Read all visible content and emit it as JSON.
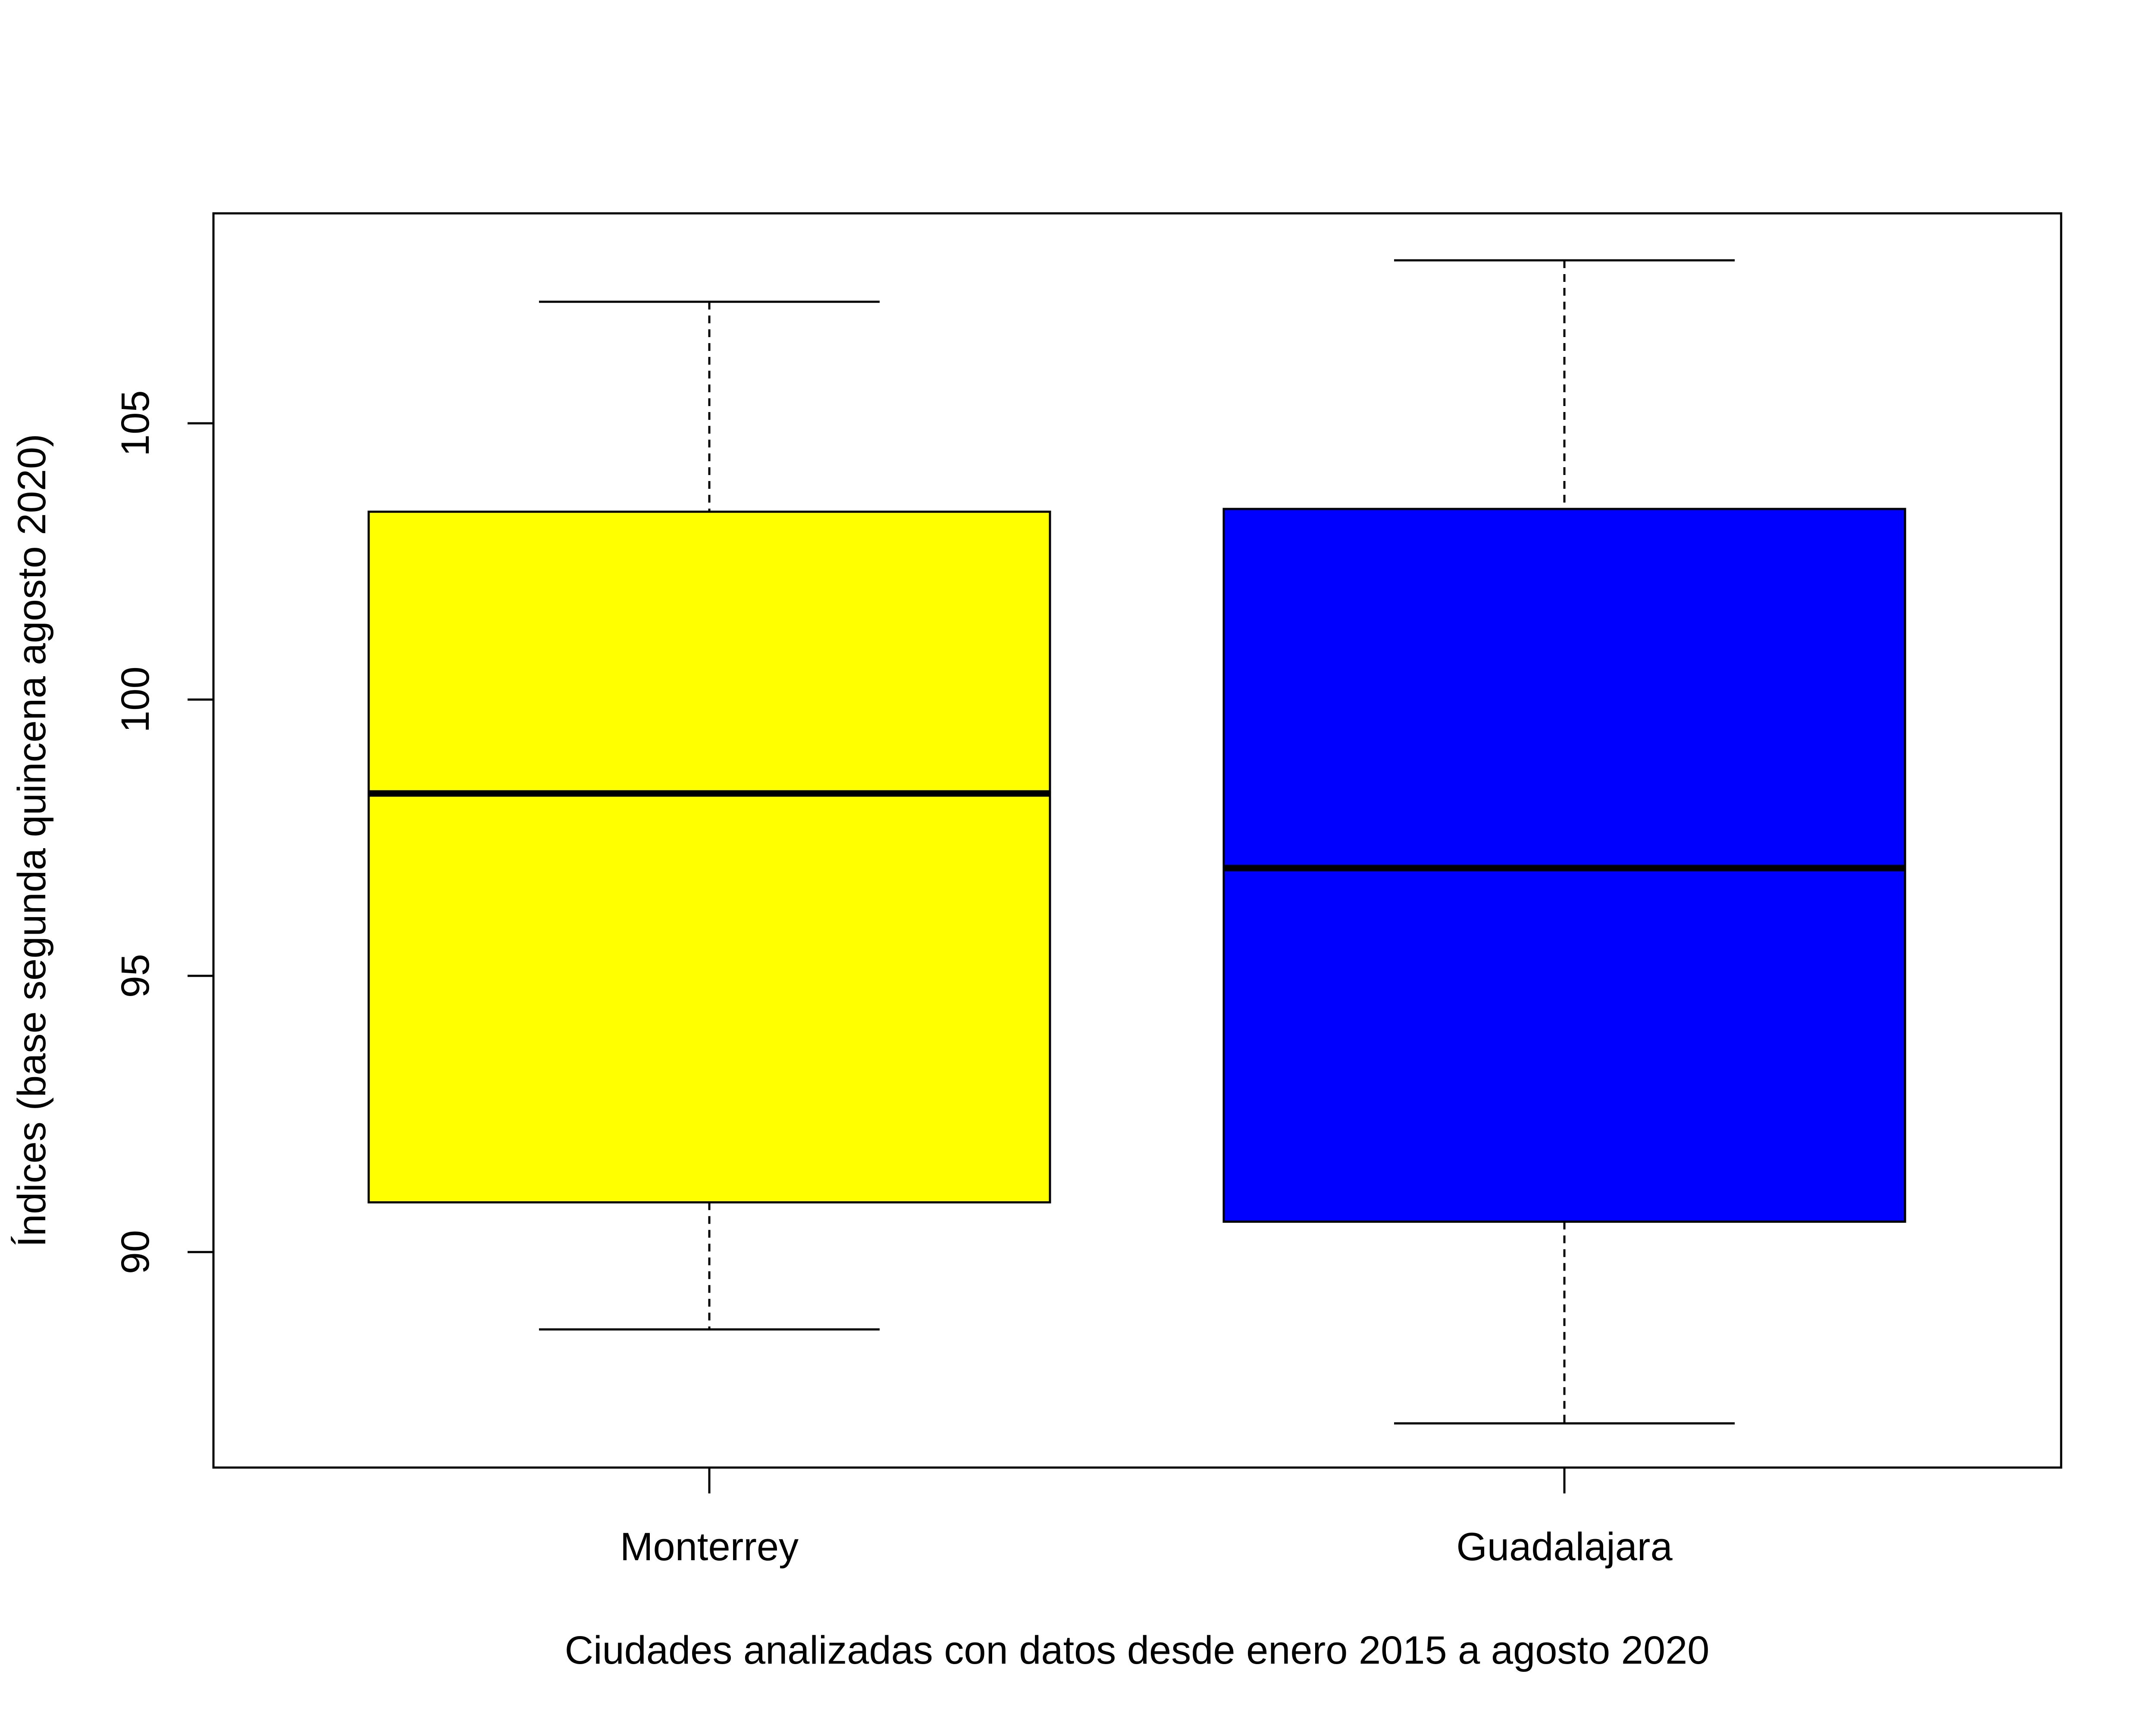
{
  "chart_data": {
    "type": "box",
    "title": "",
    "xlabel": "Ciudades analizadas con datos desde enero 2015 a agosto 2020",
    "ylabel": "Índices (base segunda quincena agosto 2020)",
    "ylim": [
      86.1,
      108.8
    ],
    "yticks": [
      90,
      95,
      100,
      105
    ],
    "grid": false,
    "categories": [
      "Monterrey",
      "Guadalajara"
    ],
    "boxes": [
      {
        "category": "Monterrey",
        "fill": "#FFFF00",
        "whisker_low": 88.6,
        "q1": 90.9,
        "median": 98.3,
        "q3": 103.4,
        "whisker_high": 107.2
      },
      {
        "category": "Guadalajara",
        "fill": "#0000FF",
        "whisker_low": 86.9,
        "q1": 90.55,
        "median": 96.95,
        "q3": 103.45,
        "whisker_high": 107.95
      }
    ]
  }
}
